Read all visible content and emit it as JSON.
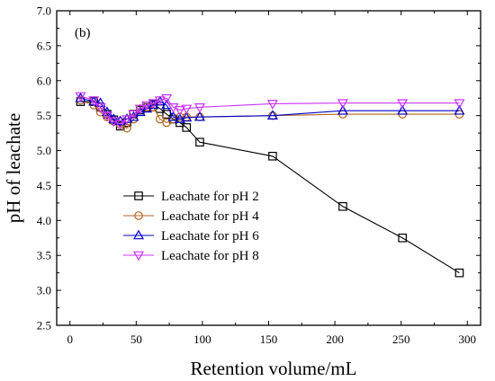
{
  "chart_data": {
    "type": "line",
    "panel_label": "(b)",
    "xlabel": "Retention volume/mL",
    "ylabel": "pH of leachate",
    "xlim": [
      -10,
      310
    ],
    "ylim": [
      2.5,
      7.0
    ],
    "xticks": [
      0,
      50,
      100,
      150,
      200,
      250,
      300
    ],
    "yticks": [
      2.5,
      3.0,
      3.5,
      4.0,
      4.5,
      5.0,
      5.5,
      6.0,
      6.5,
      7.0
    ],
    "xtick_labels": [
      "0",
      "50",
      "100",
      "150",
      "200",
      "250",
      "300"
    ],
    "ytick_labels": [
      "2.5",
      "3.0",
      "3.5",
      "4.0",
      "4.5",
      "5.0",
      "5.5",
      "6.0",
      "6.5",
      "7.0"
    ],
    "grid": false,
    "legend_position": "lower-left",
    "series": [
      {
        "name": "Leachate for pH 2",
        "color": "#000000",
        "marker": "square",
        "x": [
          8,
          18,
          23,
          28,
          33,
          38,
          43,
          48,
          53,
          58,
          63,
          68,
          73,
          78,
          83,
          88,
          98,
          153,
          206,
          251,
          294
        ],
        "y": [
          5.7,
          5.7,
          5.62,
          5.52,
          5.44,
          5.35,
          5.4,
          5.52,
          5.58,
          5.62,
          5.66,
          5.6,
          5.52,
          5.45,
          5.4,
          5.33,
          5.12,
          4.92,
          4.2,
          3.75,
          3.25
        ]
      },
      {
        "name": "Leachate for pH 4",
        "color": "#b5651d",
        "marker": "circle",
        "x": [
          8,
          18,
          23,
          28,
          33,
          38,
          43,
          48,
          53,
          58,
          63,
          68,
          73,
          78,
          83,
          88,
          98,
          153,
          206,
          251,
          294
        ],
        "y": [
          5.72,
          5.65,
          5.55,
          5.48,
          5.42,
          5.37,
          5.32,
          5.45,
          5.6,
          5.62,
          5.62,
          5.45,
          5.4,
          5.45,
          5.48,
          5.48,
          5.48,
          5.5,
          5.52,
          5.52,
          5.52
        ]
      },
      {
        "name": "Leachate for pH 6",
        "color": "#0000cc",
        "marker": "triangle-up",
        "x": [
          8,
          18,
          23,
          28,
          33,
          38,
          43,
          48,
          53,
          58,
          63,
          68,
          73,
          78,
          83,
          88,
          98,
          153,
          206,
          251,
          294
        ],
        "y": [
          5.75,
          5.7,
          5.68,
          5.55,
          5.45,
          5.42,
          5.45,
          5.48,
          5.55,
          5.6,
          5.65,
          5.7,
          5.65,
          5.48,
          5.45,
          5.47,
          5.48,
          5.5,
          5.57,
          5.57,
          5.57
        ]
      },
      {
        "name": "Leachate for pH 8",
        "color": "#cc33ff",
        "marker": "triangle-down",
        "x": [
          8,
          18,
          23,
          28,
          33,
          38,
          43,
          48,
          53,
          58,
          63,
          68,
          73,
          78,
          83,
          88,
          98,
          153,
          206,
          251,
          294
        ],
        "y": [
          5.78,
          5.72,
          5.62,
          5.5,
          5.42,
          5.38,
          5.45,
          5.52,
          5.6,
          5.65,
          5.68,
          5.72,
          5.75,
          5.62,
          5.58,
          5.6,
          5.62,
          5.67,
          5.68,
          5.68,
          5.68
        ]
      }
    ]
  }
}
